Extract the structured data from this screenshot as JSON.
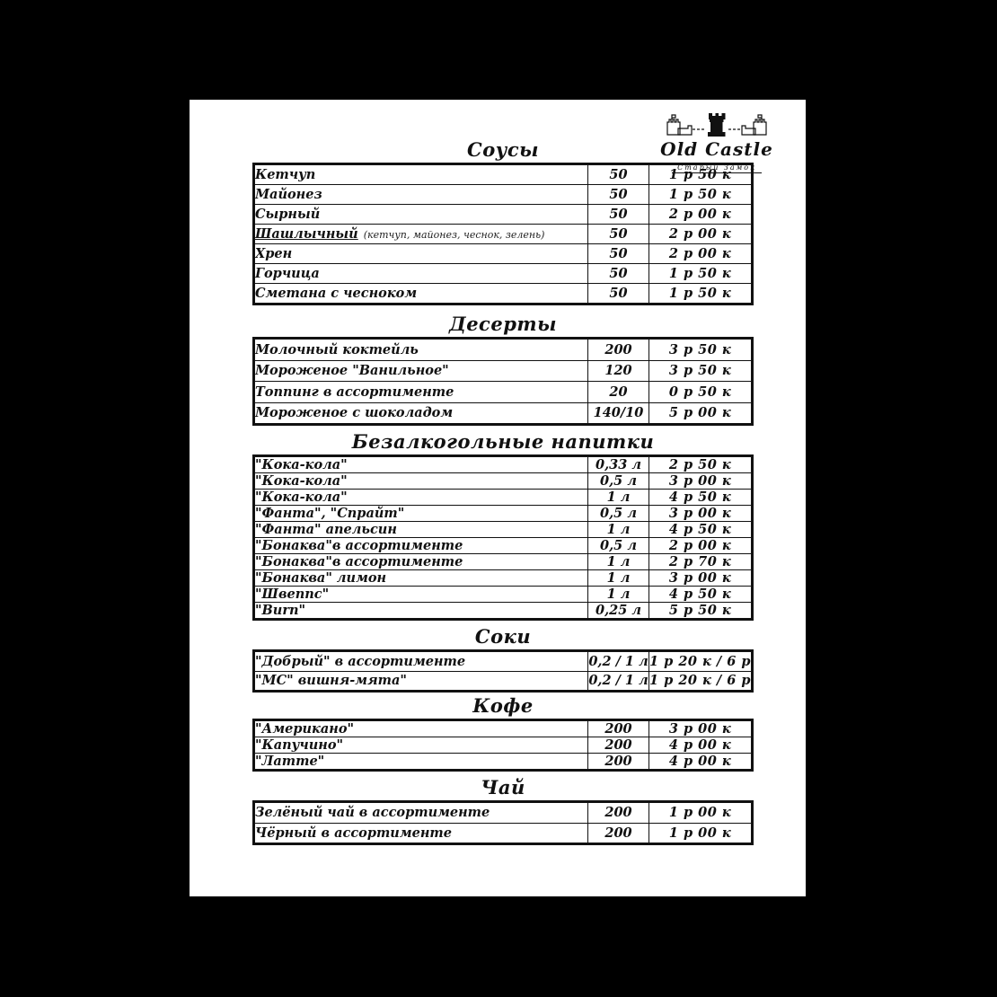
{
  "page": {
    "background": "#000000",
    "paper": "#ffffff",
    "ink": "#111111"
  },
  "logo": {
    "brand": "Old Castle",
    "subtitle": "Старый Замок",
    "icon": "castle-towers-icon"
  },
  "menu": {
    "sections": [
      {
        "title": "Соусы",
        "rows": [
          {
            "name": "Кетчуп",
            "qty": "50",
            "price": "1 р 50 к"
          },
          {
            "name": "Майонез",
            "qty": "50",
            "price": "1 р 50 к"
          },
          {
            "name": "Сырный",
            "qty": "50",
            "price": "2 р 00 к"
          },
          {
            "name": "Шашлычный",
            "underline": true,
            "note": "(кетчуп, майонез, чеснок, зелень)",
            "qty": "50",
            "price": "2 р 00 к"
          },
          {
            "name": "Хрен",
            "qty": "50",
            "price": "2 р 00 к"
          },
          {
            "name": "Горчица",
            "qty": "50",
            "price": "1 р 50 к"
          },
          {
            "name": "Сметана с чесноком",
            "qty": "50",
            "price": "1 р 50 к"
          }
        ]
      },
      {
        "title": "Десерты",
        "rows": [
          {
            "name": "Молочный коктейль",
            "qty": "200",
            "price": "3 р 50 к"
          },
          {
            "name": "Мороженое \"Ванильное\"",
            "qty": "120",
            "price": "3 р 50 к"
          },
          {
            "name": "Топпинг в ассортименте",
            "qty": "20",
            "price": "0 р 50 к"
          },
          {
            "name": "Мороженое с шоколадом",
            "qty": "140/10",
            "price": "5 р 00 к"
          }
        ]
      },
      {
        "title": "Безалкогольные напитки",
        "rows": [
          {
            "name": "\"Кока-кола\"",
            "qty": "0,33 л",
            "price": "2 р 50 к"
          },
          {
            "name": "\"Кока-кола\"",
            "qty": "0,5 л",
            "price": "3 р 00 к"
          },
          {
            "name": "\"Кока-кола\"",
            "qty": "1 л",
            "price": "4 р 50 к"
          },
          {
            "name": "\"Фанта\", \"Спрайт\"",
            "qty": "0,5 л",
            "price": "3 р 00 к"
          },
          {
            "name": "\"Фанта\" апельсин",
            "qty": "1 л",
            "price": "4 р 50 к"
          },
          {
            "name": "\"Бонаква\"в ассортименте",
            "qty": "0,5 л",
            "price": "2 р 00 к"
          },
          {
            "name": "\"Бонаква\"в ассортименте",
            "qty": "1 л",
            "price": "2 р 70 к"
          },
          {
            "name": "\"Бонаква\" лимон",
            "qty": "1 л",
            "price": "3 р 00 к"
          },
          {
            "name": "\"Швеппс\"",
            "qty": "1 л",
            "price": "4 р 50 к"
          },
          {
            "name": "\"Burn\"",
            "qty": "0,25 л",
            "price": "5 р 50 к"
          }
        ]
      },
      {
        "title": "Соки",
        "rows": [
          {
            "name": "\"Добрый\" в ассортименте",
            "qty": "0,2 / 1 л",
            "price": "1 р 20 к / 6 р"
          },
          {
            "name": "\"МС\" вишня-мята\"",
            "qty": "0,2 / 1 л",
            "price": "1 р 20 к / 6 р"
          }
        ]
      },
      {
        "title": "Кофе",
        "rows": [
          {
            "name": "\"Американо\"",
            "qty": "200",
            "price": "3 р 00 к"
          },
          {
            "name": "\"Капучино\"",
            "qty": "200",
            "price": "4 р 00 к"
          },
          {
            "name": "\"Латте\"",
            "qty": "200",
            "price": "4 р 00 к"
          }
        ]
      },
      {
        "title": "Чай",
        "rows": [
          {
            "name": "Зелёный чай в ассортименте",
            "qty": "200",
            "price": "1 р 00 к"
          },
          {
            "name": "Чёрный в ассортименте",
            "qty": "200",
            "price": "1 р 00 к"
          }
        ]
      }
    ]
  }
}
